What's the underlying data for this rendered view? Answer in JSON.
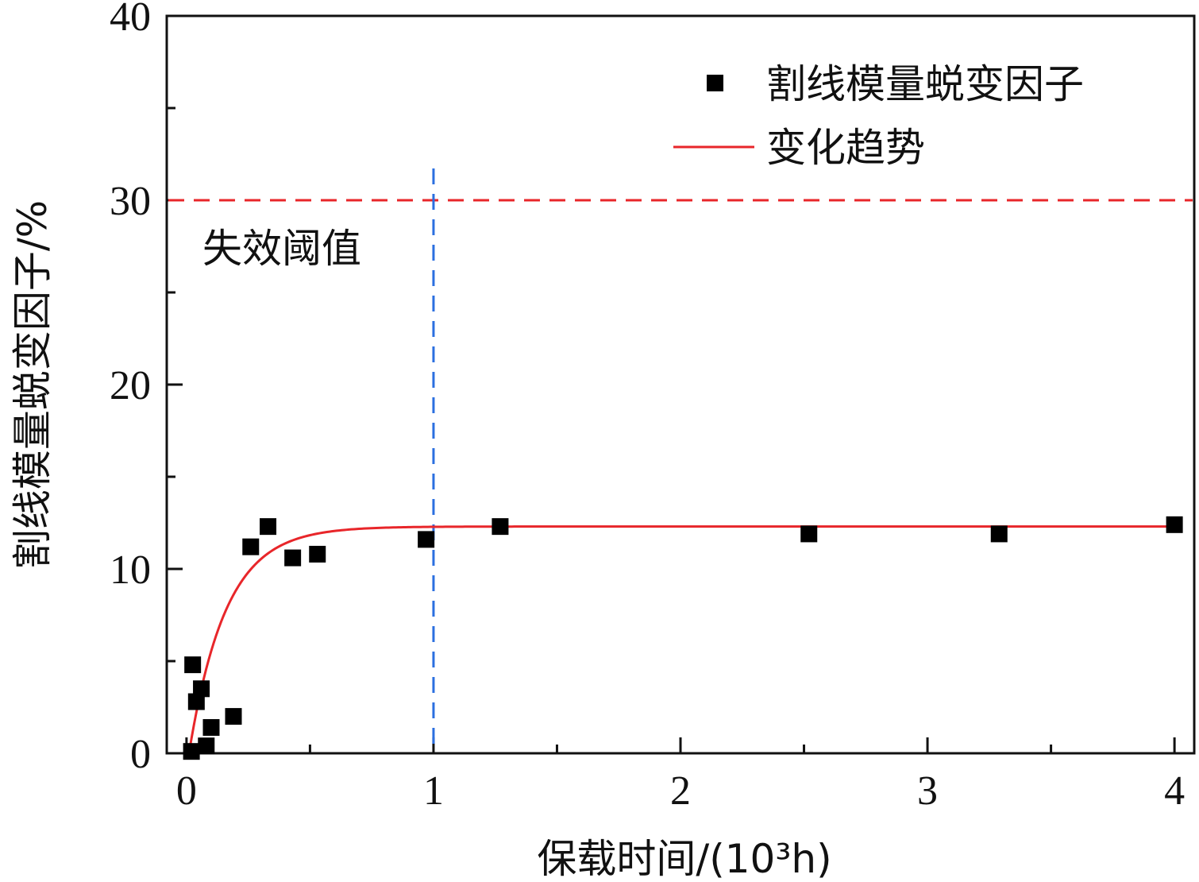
{
  "chart_data": {
    "type": "scatter",
    "title": "",
    "xlabel": "保载时间/(10³h)",
    "ylabel": "割线模量蜕变因子/%",
    "xlim": [
      -0.08,
      4.08
    ],
    "ylim": [
      0,
      40
    ],
    "x_ticks": [
      0,
      1,
      2,
      3,
      4
    ],
    "x_minor_ticks": [
      0.5,
      1.5,
      2.5,
      3.5
    ],
    "y_ticks": [
      0,
      10,
      20,
      30,
      40
    ],
    "y_minor_ticks": [
      5,
      15,
      25,
      35
    ],
    "grid": false,
    "legend_position": "top-right",
    "series": [
      {
        "name": "割线模量蜕变因子",
        "kind": "scatter",
        "marker": "square",
        "color": "#000000",
        "x": [
          0.02,
          0.025,
          0.04,
          0.06,
          0.08,
          0.1,
          0.19,
          0.26,
          0.33,
          0.43,
          0.53,
          0.97,
          1.27,
          2.52,
          3.29,
          4.0
        ],
        "y": [
          0.1,
          4.8,
          2.8,
          3.5,
          0.4,
          1.4,
          2.0,
          11.2,
          12.3,
          10.6,
          10.8,
          11.6,
          12.3,
          11.9,
          11.9,
          12.4
        ]
      },
      {
        "name": "变化趋势",
        "kind": "line",
        "color": "#e8262a",
        "function": "y = 12.3 * (1 - exp(-(x - 0.01) / 0.15))",
        "x_range": [
          0.01,
          4.0
        ]
      }
    ],
    "reference_lines": [
      {
        "orientation": "horizontal",
        "value": 30,
        "color": "#e8262a",
        "style": "dashed",
        "label": "失效阈值"
      },
      {
        "orientation": "vertical",
        "value": 1,
        "color": "#2b6fe0",
        "style": "dashed"
      }
    ]
  }
}
